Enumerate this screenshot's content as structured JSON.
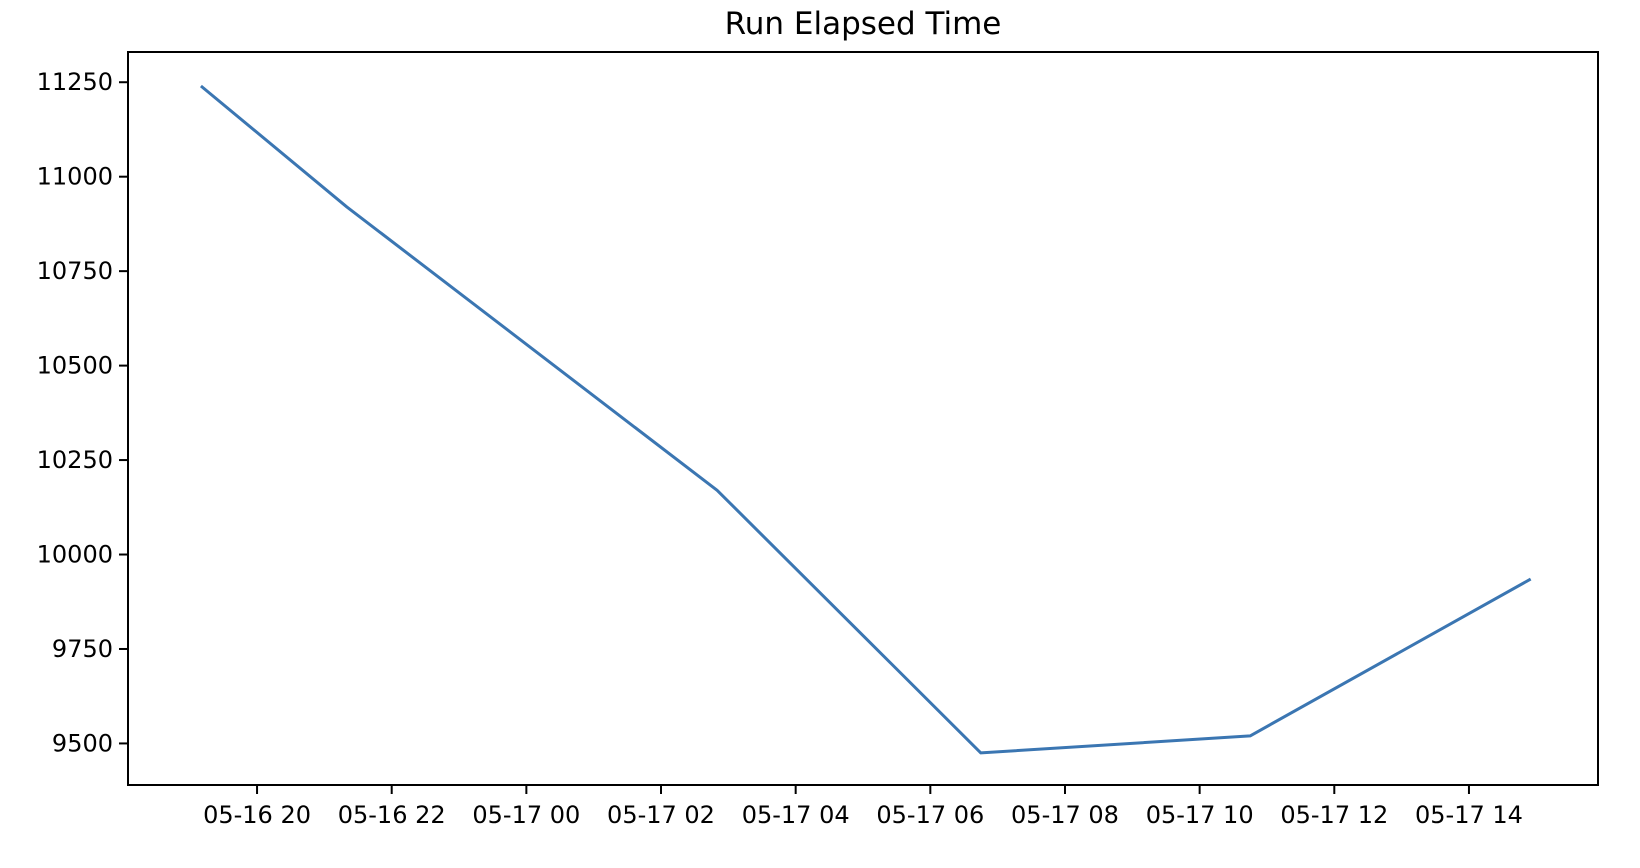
{
  "figure": {
    "title": "Run Elapsed Time"
  },
  "chart_data": {
    "type": "line",
    "title": "Run Elapsed Time",
    "xlabel": "",
    "ylabel": "",
    "grid": false,
    "legend": "none",
    "line_color": "#3b76b2",
    "axis_color": "#000000",
    "background_color": "#ffffff",
    "xlim": [
      "05-16 18:05",
      "05-17 15:55"
    ],
    "ylim": [
      9390,
      11330
    ],
    "x_tick_labels": [
      "05-16 20",
      "05-16 22",
      "05-17 00",
      "05-17 02",
      "05-17 04",
      "05-17 06",
      "05-17 08",
      "05-17 10",
      "05-17 12",
      "05-17 14"
    ],
    "y_ticks": [
      11250,
      11000,
      10750,
      10500,
      10250,
      10000,
      9750,
      9500
    ],
    "y_tick_labels": [
      "11250",
      "11000",
      "10750",
      "10500",
      "10250",
      "10000",
      "9750",
      "9500"
    ],
    "series": [
      {
        "name": "run-elapsed-time",
        "points": [
          {
            "x": "05-16 19:10",
            "y": 11240
          },
          {
            "x": "05-16 21:20",
            "y": 10920
          },
          {
            "x": "05-17 02:50",
            "y": 10170
          },
          {
            "x": "05-17 06:45",
            "y": 9475
          },
          {
            "x": "05-17 10:45",
            "y": 9520
          },
          {
            "x": "05-17 14:55",
            "y": 9935
          }
        ]
      }
    ]
  }
}
